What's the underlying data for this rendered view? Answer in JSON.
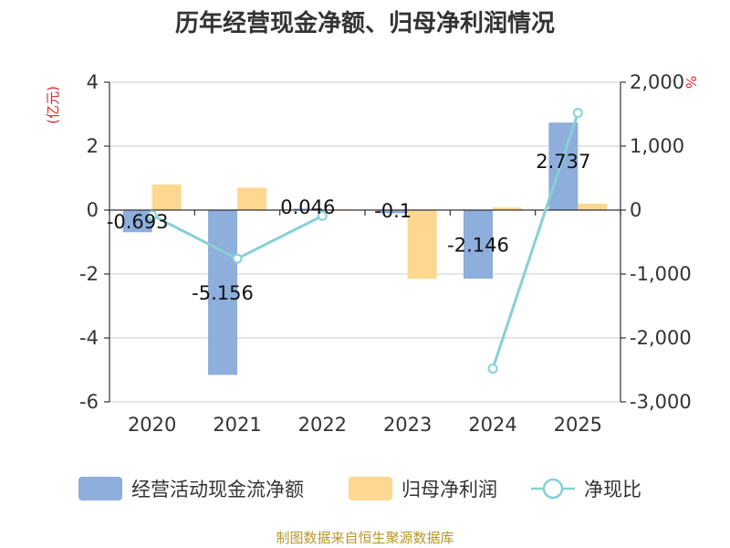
{
  "chart_data": {
    "type": "bar",
    "title": "历年经营现金净额、归母净利润情况",
    "categories": [
      "2020",
      "2021",
      "2022",
      "2023",
      "2024",
      "2025"
    ],
    "y_left": {
      "unit": "(亿元)",
      "ylim": [
        -6,
        4
      ],
      "ticks": [
        "4",
        "2",
        "0",
        "-2",
        "-4",
        "-6"
      ],
      "tick_values": [
        4,
        2,
        0,
        -2,
        -4,
        -6
      ]
    },
    "y_right": {
      "unit": "%",
      "ylim": [
        -3000,
        2000
      ],
      "ticks": [
        "2,000",
        "1,000",
        "0",
        "-1,000",
        "-2,000",
        "-3,000"
      ],
      "tick_values": [
        2000,
        1000,
        0,
        -1000,
        -2000,
        -3000
      ]
    },
    "series": [
      {
        "name": "经营活动现金流净额",
        "type": "bar",
        "axis": "left",
        "color": "#8eaedc",
        "values": [
          -0.693,
          -5.156,
          0.046,
          -0.1,
          -2.146,
          2.737
        ],
        "labels": [
          "-0.693",
          "-5.156",
          "0.046",
          "-0.1",
          "-2.146",
          "2.737"
        ]
      },
      {
        "name": "归母净利润",
        "type": "bar",
        "axis": "left",
        "color": "#fed791",
        "values": [
          0.8,
          0.7,
          0.02,
          -2.15,
          0.08,
          0.2
        ]
      },
      {
        "name": "净现比",
        "type": "line",
        "axis": "right",
        "color": "#86d0d6",
        "values": [
          -80,
          -760,
          -90,
          null,
          -2480,
          1520
        ]
      }
    ],
    "grid": true,
    "legend_position": "bottom",
    "source": "制图数据来自恒生聚源数据库"
  }
}
